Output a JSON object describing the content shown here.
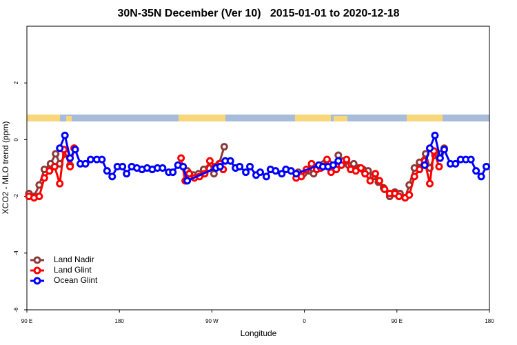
{
  "chart_data": {
    "type": "line",
    "title": "30N-35N December (Ver 10)   2015-01-01 to 2020-12-18",
    "x_label": "Longitude",
    "y_label": "XCO2 - MLO trend (ppm)",
    "xlim": [
      90,
      540
    ],
    "xticks": [
      {
        "value": 90,
        "label": "90 E"
      },
      {
        "value": 180,
        "label": "180"
      },
      {
        "value": 270,
        "label": "90 W"
      },
      {
        "value": 360,
        "label": "0"
      },
      {
        "value": 450,
        "label": "90 E"
      },
      {
        "value": 540,
        "label": "180"
      }
    ],
    "ylim": [
      -6,
      4
    ],
    "yticks": [
      -6,
      -4,
      -2,
      0,
      2
    ],
    "legend": "bottom-left",
    "series": [
      {
        "name": "Land Nadir",
        "color": "#8b3a3a",
        "x": [
          92,
          97,
          102,
          107,
          113,
          118,
          122,
          128,
          132,
          136,
          null,
          246,
          252,
          257,
          262,
          267,
          272,
          277,
          282,
          null,
          354,
          359,
          364,
          369,
          374,
          379,
          384,
          388,
          393,
          398,
          403,
          408,
          413,
          417,
          422,
          427,
          432,
          437,
          443,
          448,
          453,
          458,
          462,
          467,
          472,
          478,
          482,
          487,
          492,
          496
        ],
        "values": [
          -1.9,
          -2.0,
          -1.6,
          -1.05,
          -0.85,
          -0.5,
          -0.85,
          -0.5,
          -0.9,
          -0.3,
          null,
          -1.1,
          -1.25,
          -1.2,
          -1.05,
          -1.0,
          -1.2,
          -0.85,
          -0.25,
          null,
          -1.15,
          -1.2,
          -1.1,
          -1.2,
          -0.9,
          -0.85,
          -0.85,
          -0.95,
          -0.55,
          -0.75,
          -0.9,
          -0.85,
          -1.0,
          -1.05,
          -1.1,
          -1.3,
          -1.5,
          -1.7,
          -2.0,
          -1.85,
          -1.9,
          -2.05,
          -1.6,
          -1.0,
          -0.8,
          -0.5,
          -1.0,
          -0.55,
          -0.5,
          -0.3
        ]
      },
      {
        "name": "Land Glint",
        "color": "#ff0000",
        "x": [
          92,
          97,
          102,
          107,
          112,
          117,
          122,
          126,
          132,
          136,
          null,
          240,
          244,
          248,
          253,
          258,
          263,
          268,
          273,
          278,
          281,
          null,
          352,
          357,
          362,
          367,
          372,
          376,
          382,
          386,
          391,
          396,
          401,
          405,
          410,
          415,
          419,
          424,
          429,
          433,
          438,
          443,
          448,
          452,
          458,
          462,
          467,
          472,
          477,
          482,
          486,
          491
        ],
        "values": [
          -2.0,
          -2.05,
          -2.0,
          -1.35,
          -1.1,
          -0.95,
          -1.55,
          -0.35,
          -0.95,
          -0.3,
          null,
          -0.65,
          -1.45,
          -1.2,
          -1.35,
          -1.3,
          -1.2,
          -0.75,
          -0.95,
          -0.85,
          -1.05,
          null,
          -1.35,
          -1.3,
          -1.05,
          -0.85,
          -1.05,
          -1.0,
          -0.7,
          -1.15,
          -1.05,
          -0.9,
          -0.7,
          -1.05,
          -1.1,
          -1.0,
          -1.2,
          -1.45,
          -1.2,
          -1.45,
          -1.75,
          -1.9,
          -1.9,
          -2.0,
          -2.05,
          -1.95,
          -1.3,
          -1.05,
          -0.75,
          -1.55,
          -0.4,
          -0.95
        ]
      },
      {
        "name": "Ocean Glint",
        "color": "#0000ff",
        "x": [
          122,
          127,
          132,
          137,
          142,
          147,
          152,
          158,
          163,
          168,
          173,
          178,
          183,
          187,
          192,
          197,
          202,
          207,
          212,
          217,
          222,
          228,
          232,
          237,
          242,
          246,
          274,
          278,
          283,
          288,
          293,
          297,
          303,
          307,
          313,
          317,
          323,
          327,
          332,
          338,
          342,
          347,
          352,
          374,
          378,
          383,
          388,
          393,
          null,
          477,
          482,
          487,
          492,
          496,
          502,
          507,
          512,
          517,
          522,
          527,
          532,
          537
        ],
        "values": [
          -0.3,
          0.15,
          -0.65,
          -0.35,
          -0.85,
          -0.85,
          -0.7,
          -0.7,
          -0.7,
          -1.1,
          -1.3,
          -0.95,
          -0.95,
          -1.2,
          -0.95,
          -1.0,
          -1.05,
          -1.0,
          -1.05,
          -1.0,
          -1.0,
          -1.15,
          -1.15,
          -0.9,
          -0.95,
          -1.45,
          -1.0,
          -0.95,
          -0.75,
          -0.75,
          -1.0,
          -0.95,
          -1.15,
          -0.95,
          -1.25,
          -1.15,
          -1.3,
          -1.05,
          -1.1,
          -1.2,
          -1.05,
          -1.1,
          -1.2,
          -0.9,
          -0.95,
          -0.95,
          -0.9,
          -0.75,
          null,
          -0.9,
          -0.3,
          0.15,
          -0.65,
          -0.35,
          -0.85,
          -0.85,
          -0.7,
          -0.7,
          -0.7,
          -1.1,
          -1.3,
          -0.95
        ]
      }
    ]
  }
}
